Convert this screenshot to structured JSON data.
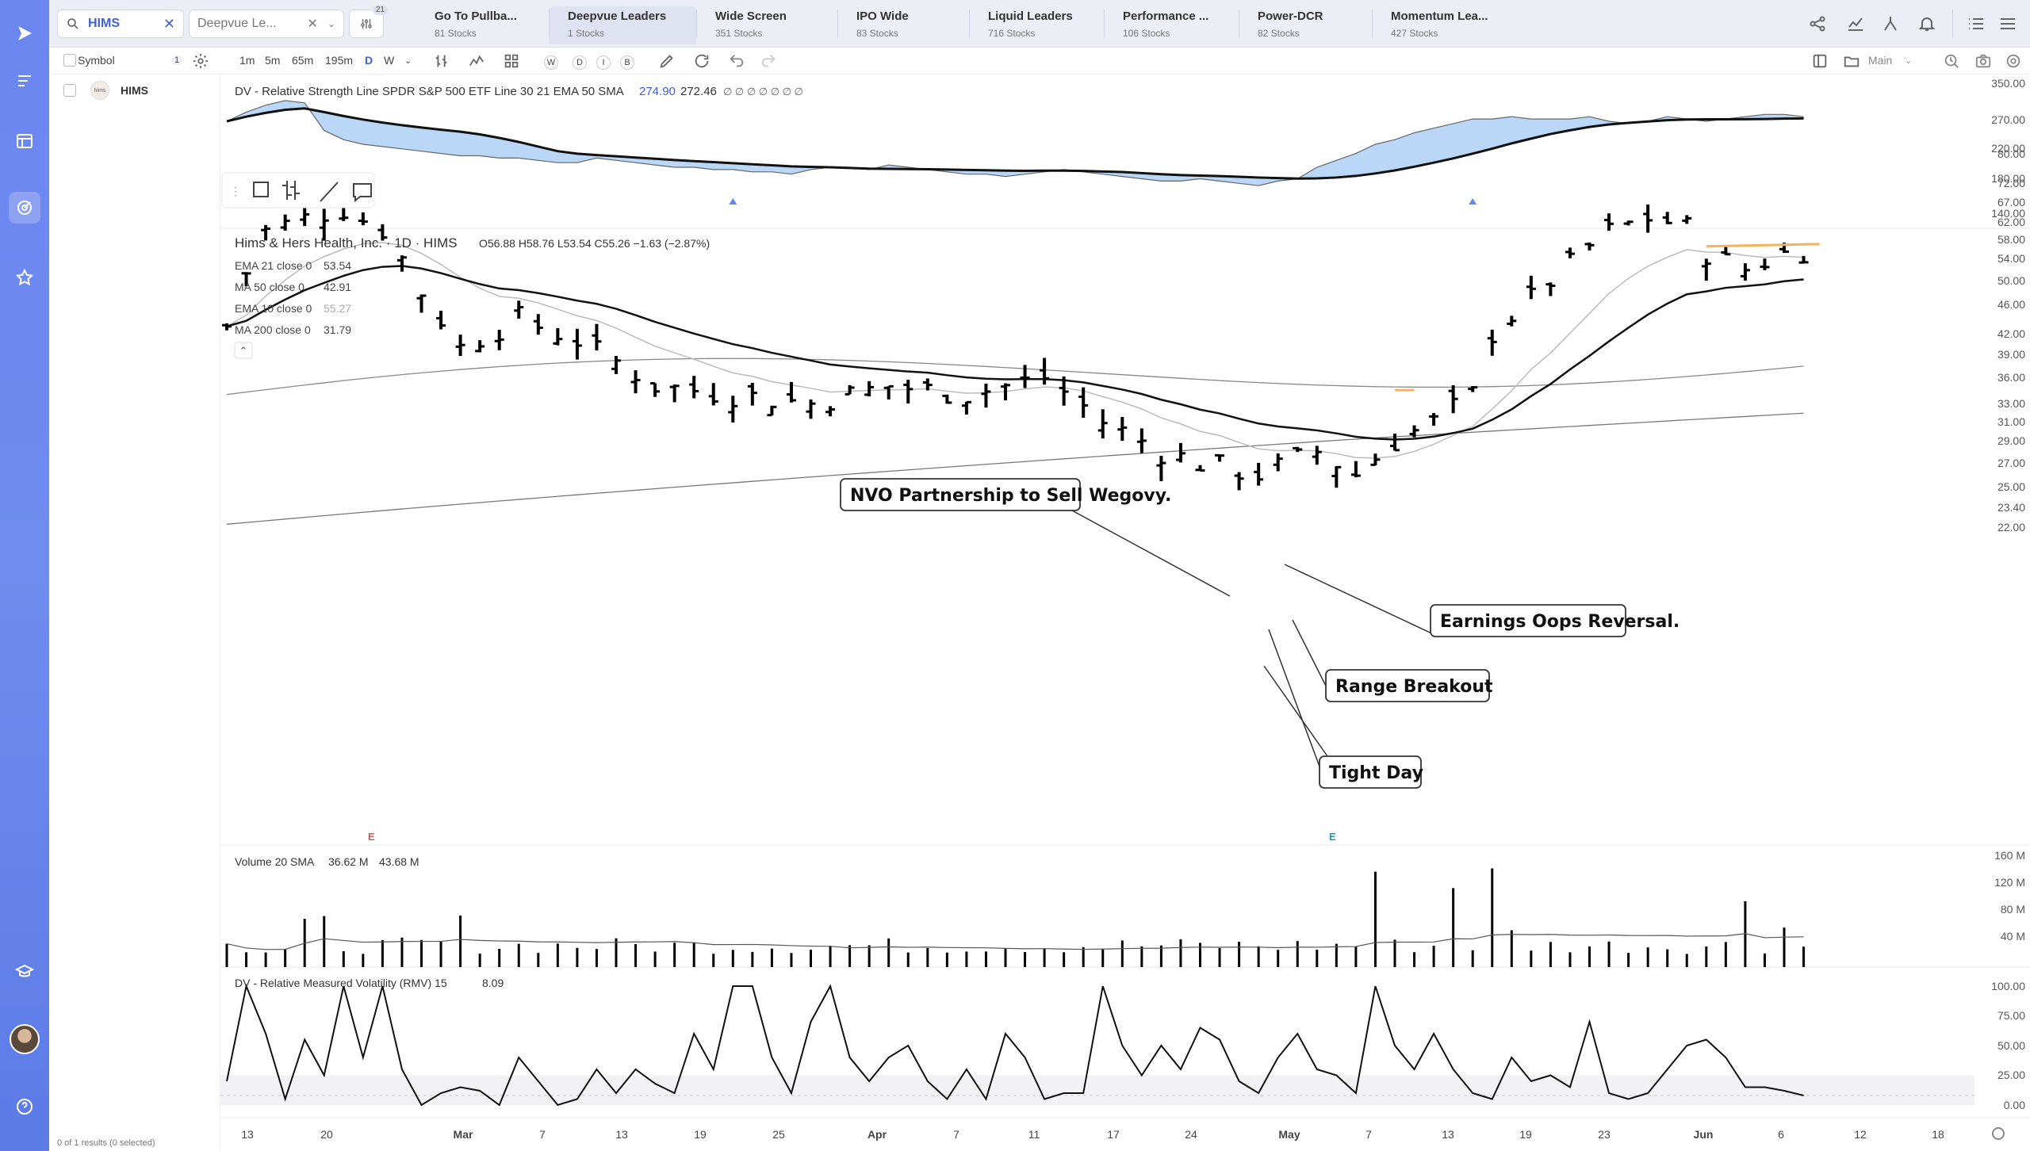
{
  "topbar": {
    "symbol_search": "HIMS",
    "layout_select": "Deepvue Le...",
    "filter_badge": "21",
    "tabs": [
      {
        "label": "Go To Pullba...",
        "count": "81 Stocks"
      },
      {
        "label": "Deepvue Leaders",
        "count": "1 Stocks"
      },
      {
        "label": "Wide Screen",
        "count": "351 Stocks"
      },
      {
        "label": "IPO Wide",
        "count": "83 Stocks"
      },
      {
        "label": "Liquid Leaders",
        "count": "716 Stocks"
      },
      {
        "label": "Performance ...",
        "count": "106 Stocks"
      },
      {
        "label": "Power-DCR",
        "count": "82 Stocks"
      },
      {
        "label": "Momentum Lea...",
        "count": "427 Stocks"
      }
    ],
    "active_tab": 1,
    "right_icons": [
      "share-icon",
      "line-chart-icon",
      "scanner-icon",
      "bell-icon",
      "list-icon",
      "menu-icon"
    ]
  },
  "toolbar": {
    "intervals": [
      "1m",
      "5m",
      "65m",
      "195m",
      "D",
      "W"
    ],
    "active_interval": "D",
    "style_keys": [
      "W",
      "D",
      "I",
      "B"
    ],
    "pane_label": "Main"
  },
  "sympanel": {
    "header": "Symbol",
    "header_count": "1",
    "rows": [
      {
        "symbol": "HIMS",
        "logo": "hims"
      }
    ],
    "footer": "0 of 1 results (0 selected)"
  },
  "rs_pane": {
    "title": "DV - Relative Strength Line SPDR S&P 500 ETF Line 30 21 EMA 50 SMA",
    "val1": "274.90",
    "val2": "272.46",
    "flags": "∅ ∅ ∅ ∅ ∅ ∅ ∅",
    "yticks": [
      "350.00",
      "270.00",
      "220.00",
      "180.00",
      "140.00"
    ]
  },
  "price_pane": {
    "title": "Hims & Hers Health, Inc. · 1D · HIMS",
    "ohlc": "O56.88  H58.76  L53.54  C55.26  −1.63 (−2.87%)",
    "indicators": [
      {
        "label": "EMA 21 close 0",
        "value": "53.54"
      },
      {
        "label": "MA 50 close 0",
        "value": "42.91"
      },
      {
        "label": "EMA 10 close 0",
        "value": "55.27"
      },
      {
        "label": "MA 200 close 0",
        "value": "31.79"
      }
    ],
    "yticks": [
      "80.00",
      "72.00",
      "67.00",
      "62.00",
      "58.00",
      "54.00",
      "50.00",
      "46.00",
      "42.00",
      "39.00",
      "36.00",
      "33.00",
      "31.00",
      "29.00",
      "27.00",
      "25.00",
      "23.40",
      "22.00"
    ],
    "earnings_marker": "E",
    "callouts": [
      "NVO Partnership to Sell Wegovy.",
      "Earnings Oops Reversal.",
      "Range Breakout",
      "Tight Day"
    ]
  },
  "volume_pane": {
    "title": "Volume 20 SMA",
    "val1": "36.62 M",
    "val2": "43.68 M",
    "yticks": [
      "160 M",
      "120 M",
      "80 M",
      "40 M"
    ]
  },
  "rmv_pane": {
    "title": "DV - Relative Measured Volatility (RMV) 15",
    "value": "8.09",
    "yticks": [
      "100.00",
      "75.00",
      "50.00",
      "25.00",
      "0.00"
    ]
  },
  "xaxis": {
    "ticks": [
      {
        "label": "13",
        "bold": false
      },
      {
        "label": "20",
        "bold": false
      },
      {
        "label": "Mar",
        "bold": true
      },
      {
        "label": "7",
        "bold": false
      },
      {
        "label": "13",
        "bold": false
      },
      {
        "label": "19",
        "bold": false
      },
      {
        "label": "25",
        "bold": false
      },
      {
        "label": "Apr",
        "bold": true
      },
      {
        "label": "7",
        "bold": false
      },
      {
        "label": "11",
        "bold": false
      },
      {
        "label": "17",
        "bold": false
      },
      {
        "label": "24",
        "bold": false
      },
      {
        "label": "May",
        "bold": true
      },
      {
        "label": "7",
        "bold": false
      },
      {
        "label": "13",
        "bold": false
      },
      {
        "label": "19",
        "bold": false
      },
      {
        "label": "23",
        "bold": false
      },
      {
        "label": "Jun",
        "bold": true
      },
      {
        "label": "6",
        "bold": false
      },
      {
        "label": "12",
        "bold": false
      },
      {
        "label": "18",
        "bold": false
      }
    ]
  },
  "colors": {
    "rail": "#6f8cef",
    "accent": "#3d5fe0",
    "rs_fill_pos": "#a9cdf5",
    "rs_fill_neg": "#e9e9ec",
    "orange": "#f5b35a",
    "earnings_red": "#d9534f",
    "earnings_teal": "#1aa39a"
  }
}
